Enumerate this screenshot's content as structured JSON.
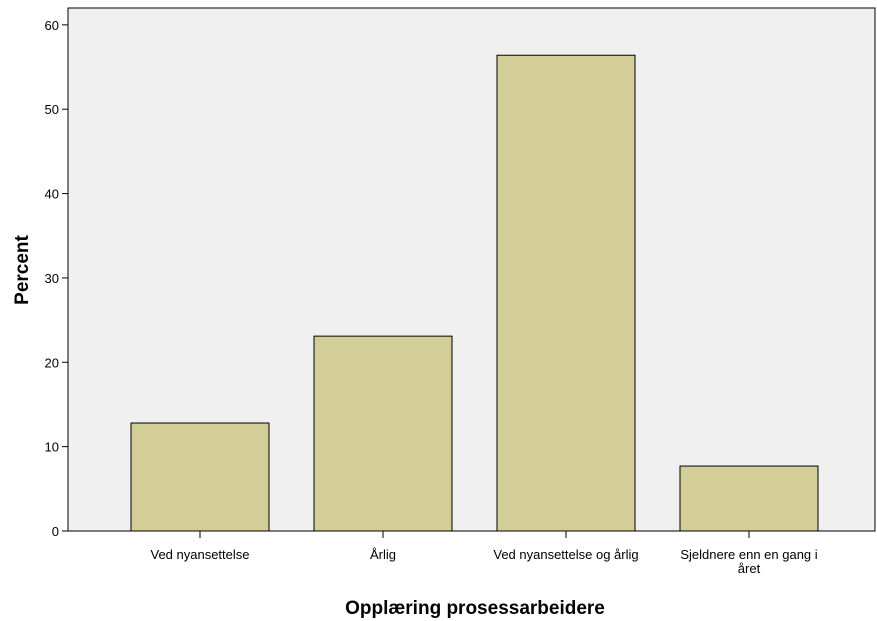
{
  "chart_data": {
    "type": "bar",
    "title": "",
    "xlabel": "Opplæring prosessarbeidere",
    "ylabel": "Percent",
    "categories": [
      [
        "Ved nyansettelse"
      ],
      [
        "Årlig"
      ],
      [
        "Ved nyansettelse og årlig"
      ],
      [
        "Sjeldnere enn en gang i",
        "året"
      ]
    ],
    "values": [
      12.8,
      23.1,
      56.4,
      7.7
    ],
    "ylim": [
      0,
      62
    ],
    "yticks": [
      0,
      10,
      20,
      30,
      40,
      50,
      60
    ],
    "grid": false,
    "legend": "none",
    "colors": {
      "plot_background": "#f0f0f0",
      "bar_fill": "#d3ce97",
      "bar_stroke": "#000000"
    }
  }
}
